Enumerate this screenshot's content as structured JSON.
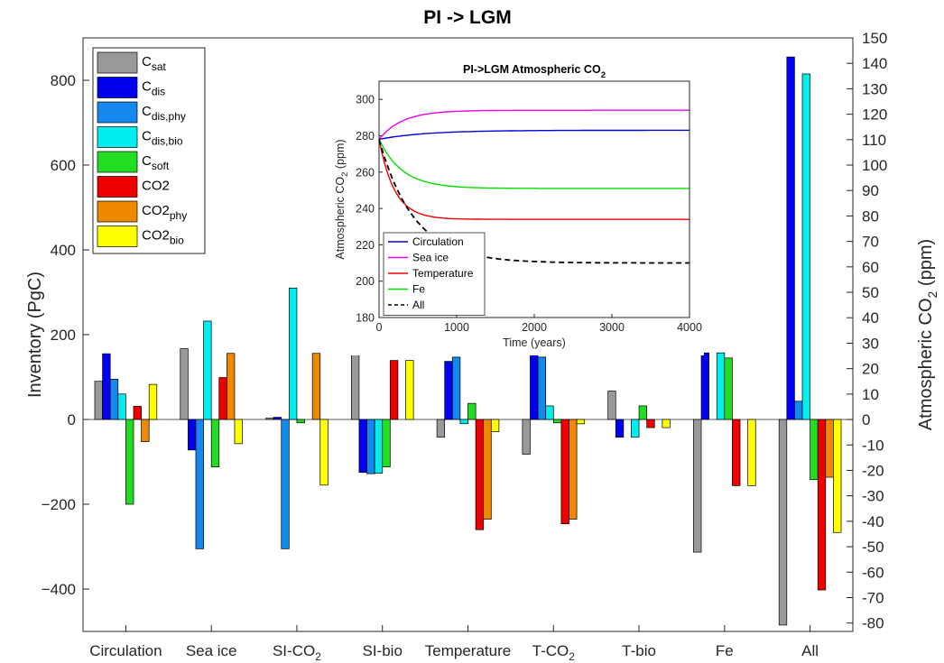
{
  "chart_data": [
    {
      "type": "bar",
      "title": "PI -> LGM",
      "ylabel": "Inventory (PgC)",
      "y2label": "Atmospheric CO",
      "y2label_sub": "2",
      "y2label_unit": " (ppm)",
      "ylim": [
        -500,
        900
      ],
      "y2lim": [
        -83.3,
        150
      ],
      "yticks": [
        -400,
        -200,
        0,
        200,
        400,
        600,
        800
      ],
      "yticklabels": [
        "−400",
        "−200",
        "0",
        "200",
        "400",
        "600",
        "800"
      ],
      "y2ticks": [
        -80,
        -70,
        -60,
        -50,
        -40,
        -30,
        -20,
        -10,
        0,
        10,
        20,
        30,
        40,
        50,
        60,
        70,
        80,
        90,
        100,
        110,
        120,
        130,
        140,
        150
      ],
      "categories": [
        "Circulation",
        "Sea ice",
        "SI-CO2",
        "SI-bio",
        "Temperature",
        "T-CO2",
        "T-bio",
        "Fe",
        "All"
      ],
      "category_labels": [
        {
          "main": "Circulation",
          "sub": ""
        },
        {
          "main": "Sea ice",
          "sub": ""
        },
        {
          "main": "SI-CO",
          "sub": "2"
        },
        {
          "main": "SI-bio",
          "sub": ""
        },
        {
          "main": "Temperature",
          "sub": ""
        },
        {
          "main": "T-CO",
          "sub": "2"
        },
        {
          "main": "T-bio",
          "sub": ""
        },
        {
          "main": "Fe",
          "sub": ""
        },
        {
          "main": "All",
          "sub": ""
        }
      ],
      "legend": {
        "placement": "top-left"
      },
      "series": [
        {
          "name": "C",
          "sub": "sat",
          "axis": "left",
          "color": "#999999",
          "values": [
            90,
            167,
            3,
            157,
            -42,
            -82,
            67,
            -313,
            -485
          ]
        },
        {
          "name": "C",
          "sub": "dis",
          "axis": "left",
          "color": "#0000ee",
          "values": [
            155,
            -72,
            5,
            -125,
            137,
            157,
            -42,
            157,
            855
          ]
        },
        {
          "name": "C",
          "sub": "dis,phy",
          "axis": "left",
          "color": "#1588ee",
          "values": [
            95,
            -305,
            -305,
            -128,
            147,
            147,
            0,
            0,
            43
          ]
        },
        {
          "name": "C",
          "sub": "dis,bio",
          "axis": "left",
          "color": "#00eeee",
          "values": [
            60,
            232,
            310,
            -127,
            -10,
            32,
            -42,
            157,
            815
          ]
        },
        {
          "name": "C",
          "sub": "soft",
          "axis": "left",
          "color": "#22dd22",
          "values": [
            -200,
            -112,
            -8,
            -112,
            38,
            -8,
            32,
            145,
            -142
          ]
        },
        {
          "name": "CO2",
          "sub": "",
          "axis": "right",
          "color": "#ee0000",
          "values": [
            5.2,
            16.5,
            0,
            23.2,
            -43.3,
            -41.0,
            -3.2,
            -26.0,
            -67.0
          ]
        },
        {
          "name": "CO2",
          "sub": "phy",
          "axis": "right",
          "color": "#ee8800",
          "values": [
            -8.7,
            26.0,
            26.0,
            0,
            -39.2,
            -39.2,
            0,
            0,
            -22.7
          ]
        },
        {
          "name": "CO2",
          "sub": "bio",
          "axis": "right",
          "color": "#ffff00",
          "values": [
            13.8,
            -9.5,
            -25.8,
            23.2,
            -4.8,
            -1.7,
            -3.2,
            -26.0,
            -44.4
          ]
        }
      ]
    },
    {
      "type": "line",
      "title": "PI->LGM Atmospheric CO",
      "title_sub": "2",
      "xlabel": "Time (years)",
      "ylabel": "Atmospheric CO",
      "ylabel_sub": "2",
      "ylabel_unit": " (ppm)",
      "xlim": [
        0,
        4000
      ],
      "ylim": [
        180,
        310
      ],
      "xticks": [
        0,
        1000,
        2000,
        3000,
        4000
      ],
      "yticks": [
        180,
        200,
        220,
        240,
        260,
        280,
        300
      ],
      "legend": {
        "placement": "bottom-left"
      },
      "series": [
        {
          "name": "Circulation",
          "color": "#0000dd",
          "dash": false,
          "start": 278,
          "end": 283,
          "tau": 600
        },
        {
          "name": "Sea ice",
          "color": "#ee00ee",
          "dash": false,
          "start": 278,
          "end": 294,
          "tau": 300
        },
        {
          "name": "Temperature",
          "color": "#ee0000",
          "dash": false,
          "start": 278,
          "end": 234,
          "tau": 200
        },
        {
          "name": "Fe",
          "color": "#00dd00",
          "dash": false,
          "start": 278,
          "end": 251,
          "tau": 300
        },
        {
          "name": "All",
          "color": "#000000",
          "dash": true,
          "start": 278,
          "end": 210,
          "tau": 450
        }
      ]
    }
  ]
}
